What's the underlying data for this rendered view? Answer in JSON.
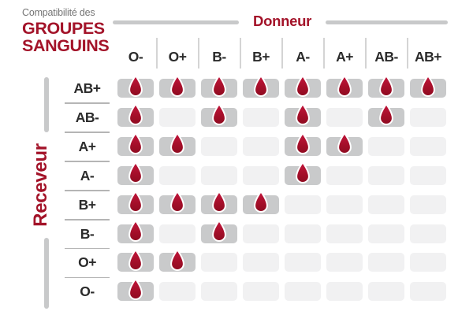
{
  "title": {
    "eyebrow": "Compatibilité des",
    "line1": "GROUPES",
    "line2": "SANGUINS"
  },
  "axes": {
    "donor": "Donneur",
    "receiver": "Receveur"
  },
  "chart_data": {
    "type": "heatmap",
    "title": "Compatibilité des groupes sanguins",
    "x_axis_label": "Donneur",
    "y_axis_label": "Receveur",
    "columns": [
      "O-",
      "O+",
      "B-",
      "B+",
      "A-",
      "A+",
      "AB-",
      "AB+"
    ],
    "rows": [
      "AB+",
      "AB-",
      "A+",
      "A-",
      "B+",
      "B-",
      "O+",
      "O-"
    ],
    "matrix": [
      [
        1,
        1,
        1,
        1,
        1,
        1,
        1,
        1
      ],
      [
        1,
        0,
        1,
        0,
        1,
        0,
        1,
        0
      ],
      [
        1,
        1,
        0,
        0,
        1,
        1,
        0,
        0
      ],
      [
        1,
        0,
        0,
        0,
        1,
        0,
        0,
        0
      ],
      [
        1,
        1,
        1,
        1,
        0,
        0,
        0,
        0
      ],
      [
        1,
        0,
        1,
        0,
        0,
        0,
        0,
        0
      ],
      [
        1,
        1,
        0,
        0,
        0,
        0,
        0,
        0
      ],
      [
        1,
        0,
        0,
        0,
        0,
        0,
        0,
        0
      ]
    ],
    "compatible_icon": "blood-drop-icon"
  },
  "colors": {
    "accent": "#A31329",
    "ink": "#2B2B2B",
    "muted": "#757575",
    "bar": "#C8C9CA",
    "cellOn": "#C9CACB",
    "cellOff": "#F1F1F2",
    "line": "#B5B5B5",
    "sep": "#D4D4D4",
    "dropTop": "#C3163C",
    "dropMid": "#A50F2A",
    "dropBottom": "#8E0B20"
  }
}
